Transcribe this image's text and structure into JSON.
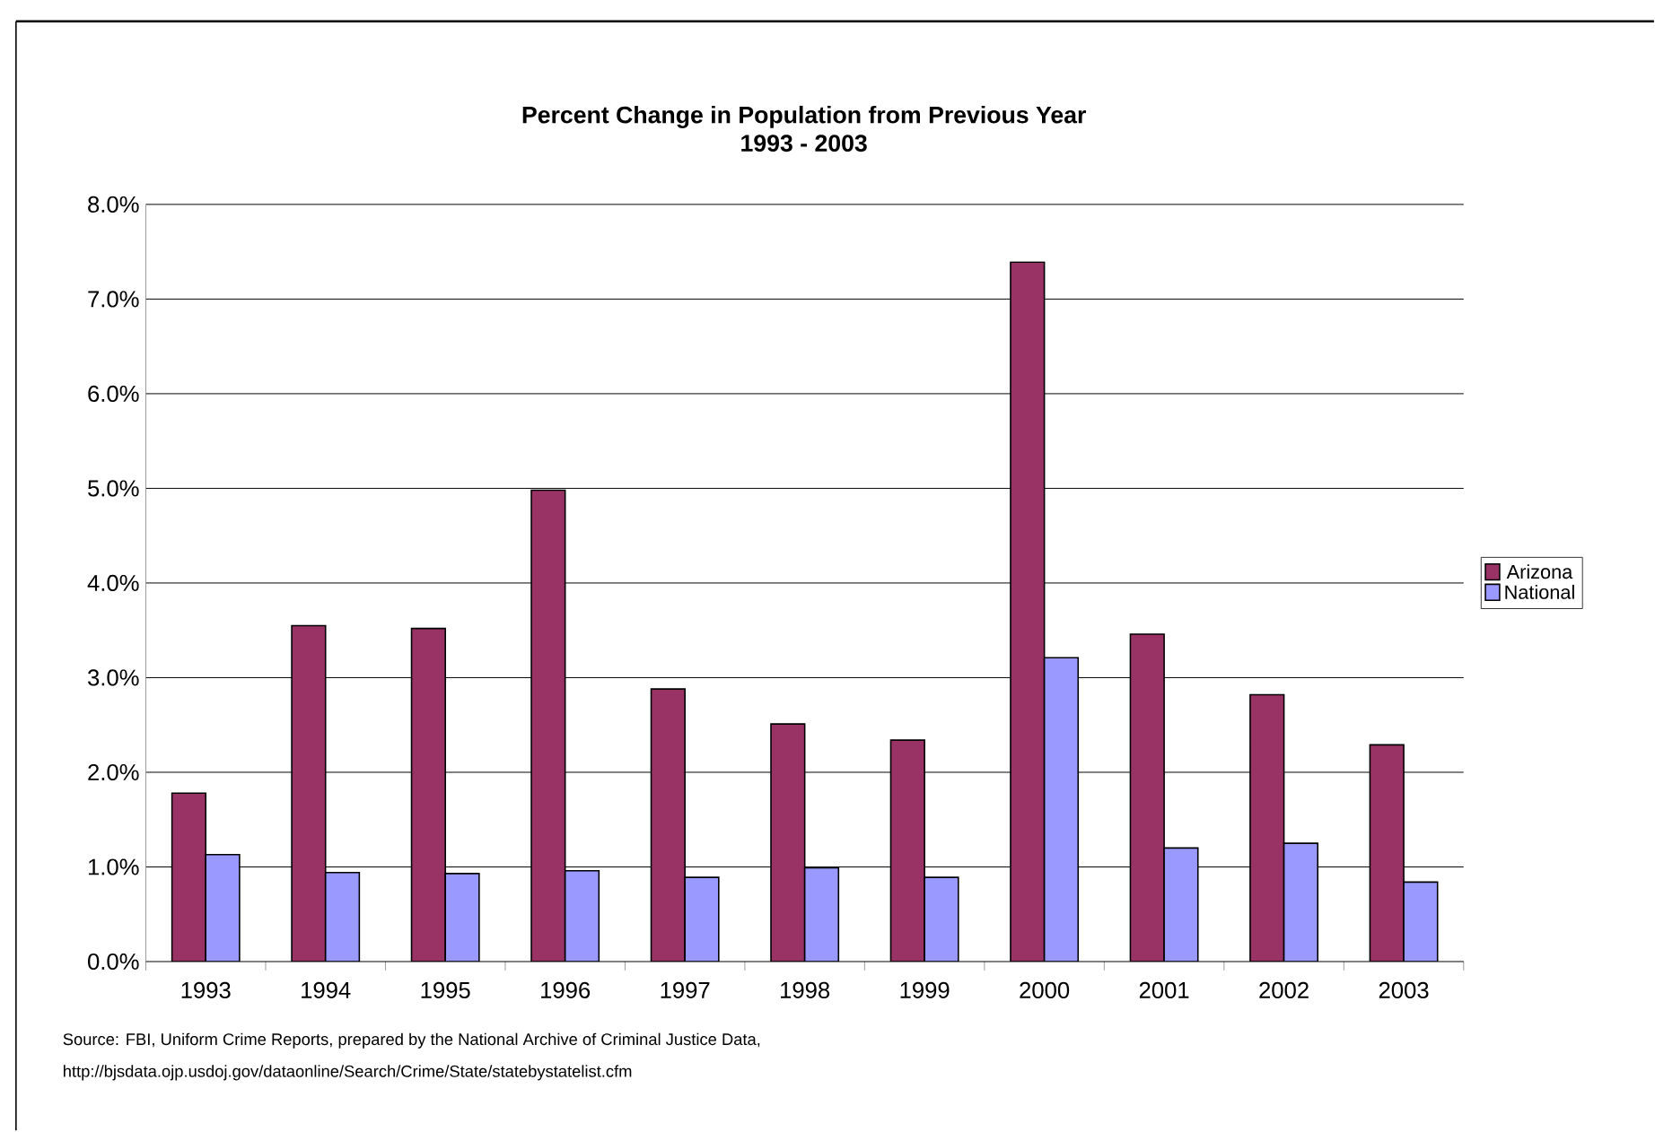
{
  "chart_data": {
    "type": "bar",
    "title": "Percent Change in Population from Previous Year",
    "subtitle": "1993 - 2003",
    "categories": [
      "1993",
      "1994",
      "1995",
      "1996",
      "1997",
      "1998",
      "1999",
      "2000",
      "2001",
      "2002",
      "2003"
    ],
    "series": [
      {
        "name": "Arizona",
        "color": "#993366",
        "values": [
          1.78,
          3.55,
          3.52,
          4.98,
          2.88,
          2.51,
          2.34,
          7.39,
          3.46,
          2.82,
          2.29
        ]
      },
      {
        "name": "National",
        "color": "#9999ff",
        "values": [
          1.13,
          0.94,
          0.93,
          0.96,
          0.89,
          0.99,
          0.89,
          3.21,
          1.2,
          1.25,
          0.84
        ]
      }
    ],
    "ylim": [
      0,
      8
    ],
    "yticks": [
      {
        "value": 0,
        "label": "0.0%"
      },
      {
        "value": 1,
        "label": "1.0%"
      },
      {
        "value": 2,
        "label": "2.0%"
      },
      {
        "value": 3,
        "label": "3.0%"
      },
      {
        "value": 4,
        "label": "4.0%"
      },
      {
        "value": 5,
        "label": "5.0%"
      },
      {
        "value": 6,
        "label": "6.0%"
      },
      {
        "value": 7,
        "label": "7.0%"
      },
      {
        "value": 8,
        "label": "8.0%"
      }
    ],
    "grid": "y",
    "legend": "right",
    "annotations": [
      "Source: FBI, Uniform Crime Reports, prepared by the National Archive of Criminal Justice Data,",
      "http://bjsdata.ojp.usdoj.gov/dataonline/Search/Crime/State/statebystatelist.cfm"
    ]
  }
}
